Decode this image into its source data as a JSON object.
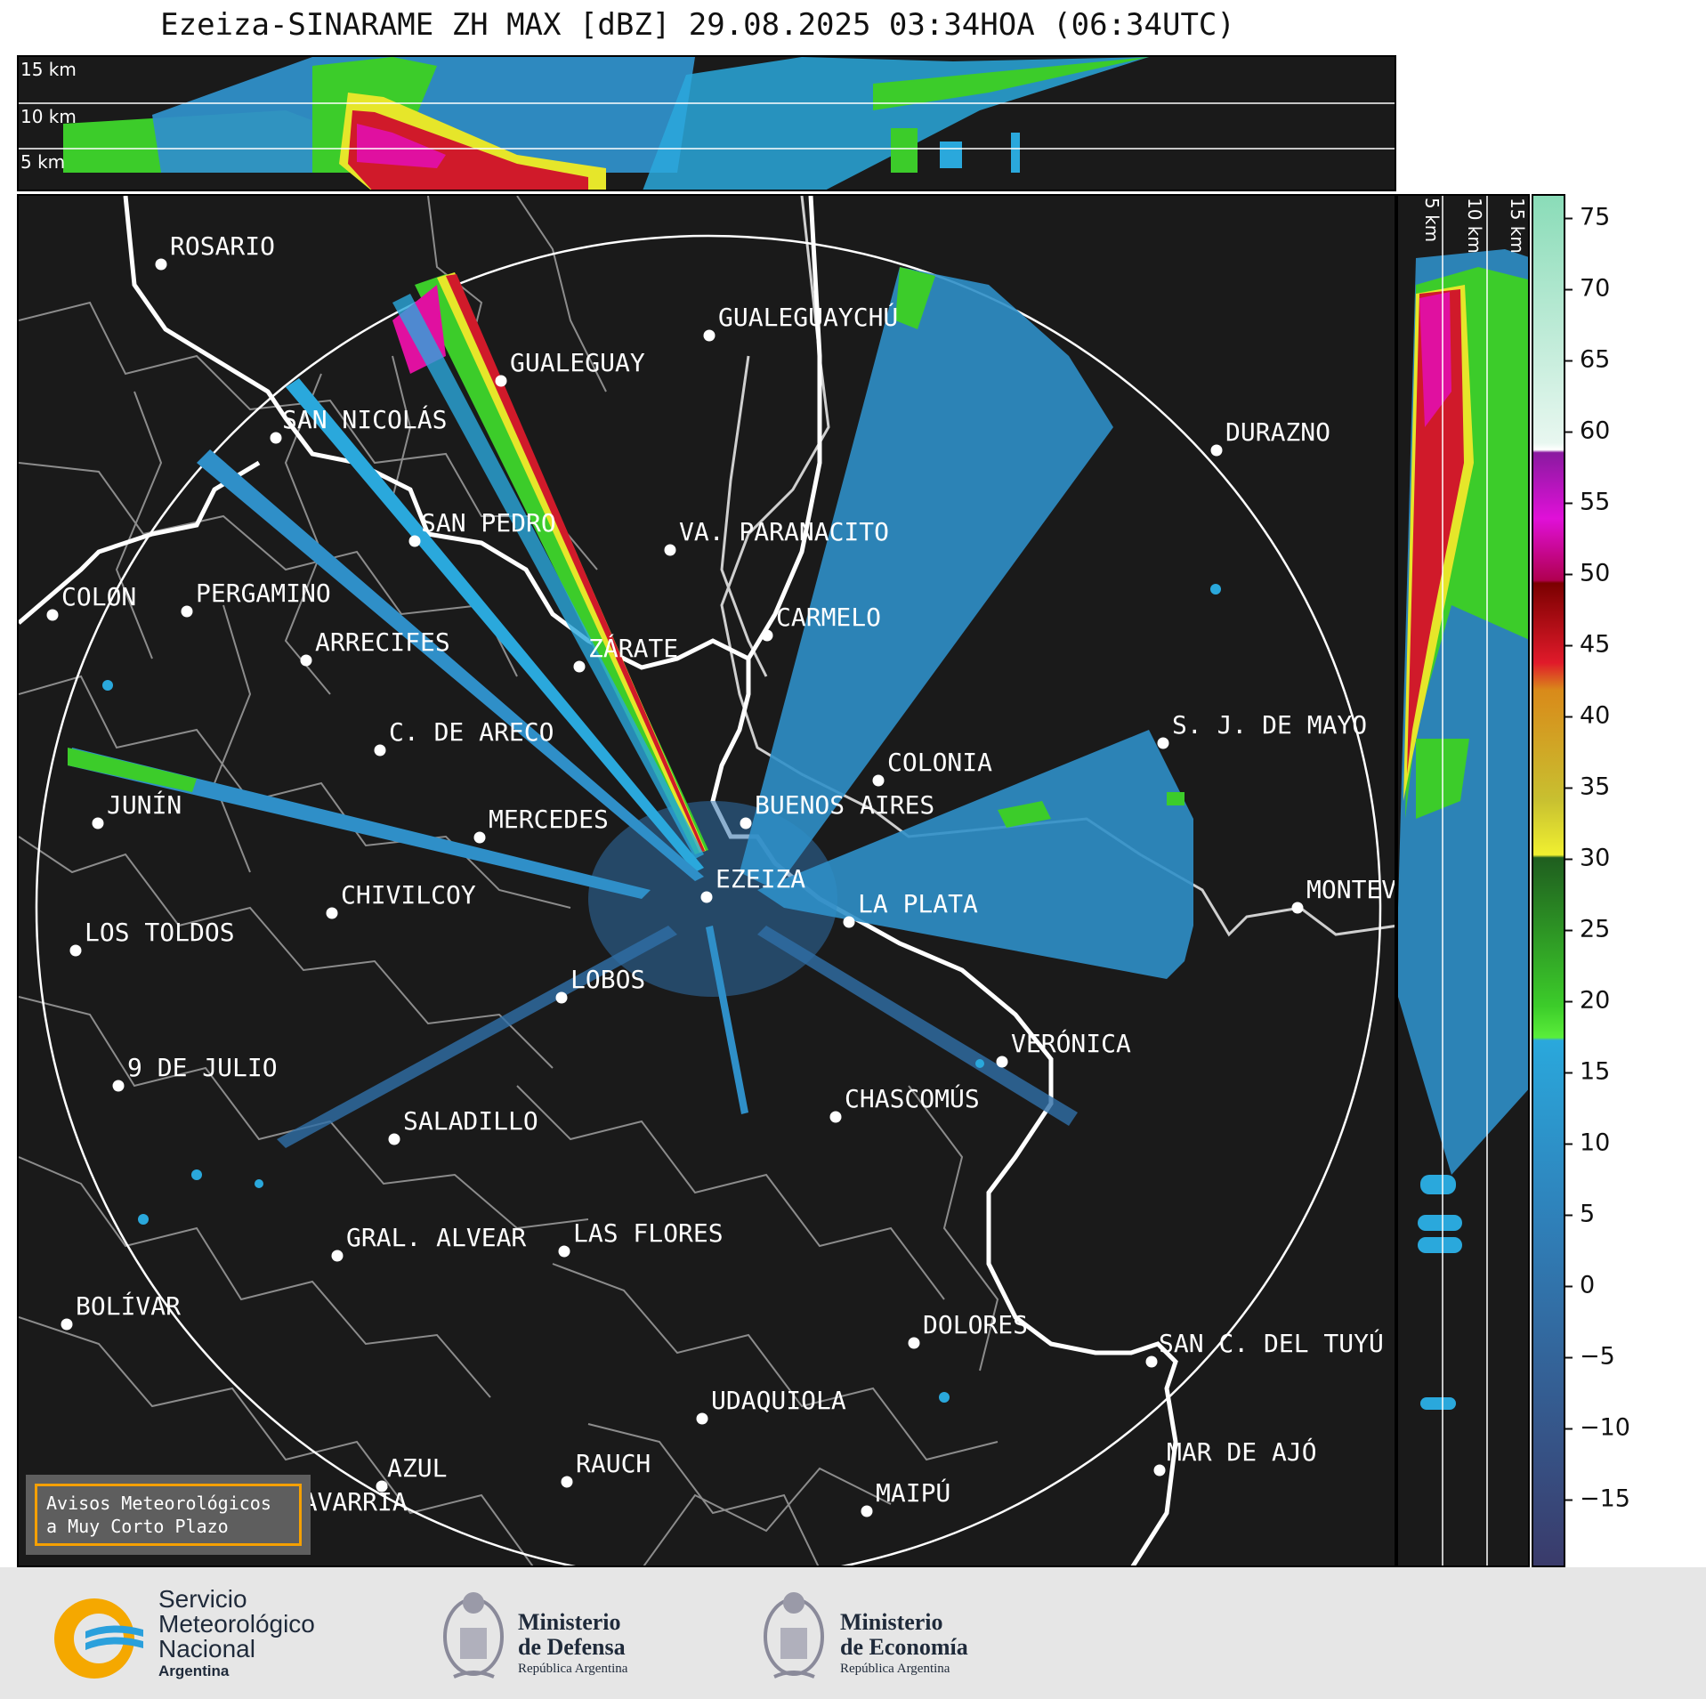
{
  "title": "Ezeiza-SINARAME ZH MAX [dBZ] 29.08.2025 03:34HOA (06:34UTC)",
  "altitude_labels": [
    "15 km",
    "10 km",
    "5 km"
  ],
  "colorbar": {
    "ticks": [
      "75",
      "70",
      "65",
      "60",
      "55",
      "50",
      "45",
      "40",
      "35",
      "30",
      "25",
      "20",
      "15",
      "10",
      "5",
      "0",
      "−5",
      "−10",
      "−15"
    ],
    "colors": {
      "dark_blue": "#3c3e6e",
      "blue": "#2f7fb8",
      "light_blue": "#2aa8dc",
      "green": "#3ccc2a",
      "dark_green": "#1f6e1f",
      "yellow": "#e6e62a",
      "orange": "#d98a1a",
      "red": "#d01a2a",
      "dark_red": "#7a0000",
      "magenta": "#e010d8",
      "purple": "#8a1aa0",
      "white": "#ffffff",
      "mint": "#8adcb8"
    }
  },
  "cities": [
    {
      "name": "ROSARIO"
    },
    {
      "name": "GUALEGUAYCHÚ"
    },
    {
      "name": "GUALEGUAY"
    },
    {
      "name": "SAN NICOLÁS"
    },
    {
      "name": "DURAZNO"
    },
    {
      "name": "SAN PEDRO"
    },
    {
      "name": "VA. PARANACITO"
    },
    {
      "name": "COLON"
    },
    {
      "name": "PERGAMINO"
    },
    {
      "name": "CARMELO"
    },
    {
      "name": "ARRECIFES"
    },
    {
      "name": "ZÁRATE"
    },
    {
      "name": "S. J. DE MAYO"
    },
    {
      "name": "C. DE ARECO"
    },
    {
      "name": "COLONIA"
    },
    {
      "name": "JUNÍN"
    },
    {
      "name": "BUENOS AIRES"
    },
    {
      "name": "MERCEDES"
    },
    {
      "name": "EZEIZA"
    },
    {
      "name": "MONTEV"
    },
    {
      "name": "CHIVILCOY"
    },
    {
      "name": "LA PLATA"
    },
    {
      "name": "LOS TOLDOS"
    },
    {
      "name": "LOBOS"
    },
    {
      "name": "VERÓNICA"
    },
    {
      "name": "9 DE JULIO"
    },
    {
      "name": "CHASCOMÚS"
    },
    {
      "name": "SALADILLO"
    },
    {
      "name": "GRAL. ALVEAR"
    },
    {
      "name": "LAS FLORES"
    },
    {
      "name": "BOLÍVAR"
    },
    {
      "name": "DOLORES"
    },
    {
      "name": "SAN C. DEL TUYÚ"
    },
    {
      "name": "UDAQUIOLA"
    },
    {
      "name": "MAR DE AJÓ"
    },
    {
      "name": "AZUL"
    },
    {
      "name": "RAUCH"
    },
    {
      "name": "MAIPÚ"
    },
    {
      "name": "OLAVARRÍA"
    }
  ],
  "notice": {
    "line1": "Avisos Meteorológicos",
    "line2": "a Muy Corto Plazo"
  },
  "footer": {
    "smn": {
      "line1": "Servicio",
      "line2": "Meteorológico",
      "line3": "Nacional",
      "line4": "Argentina"
    },
    "defensa": {
      "line1": "Ministerio",
      "line2": "de Defensa",
      "line3": "República Argentina"
    },
    "economia": {
      "line1": "Ministerio",
      "line2": "de Economía",
      "line3": "República Argentina"
    }
  }
}
